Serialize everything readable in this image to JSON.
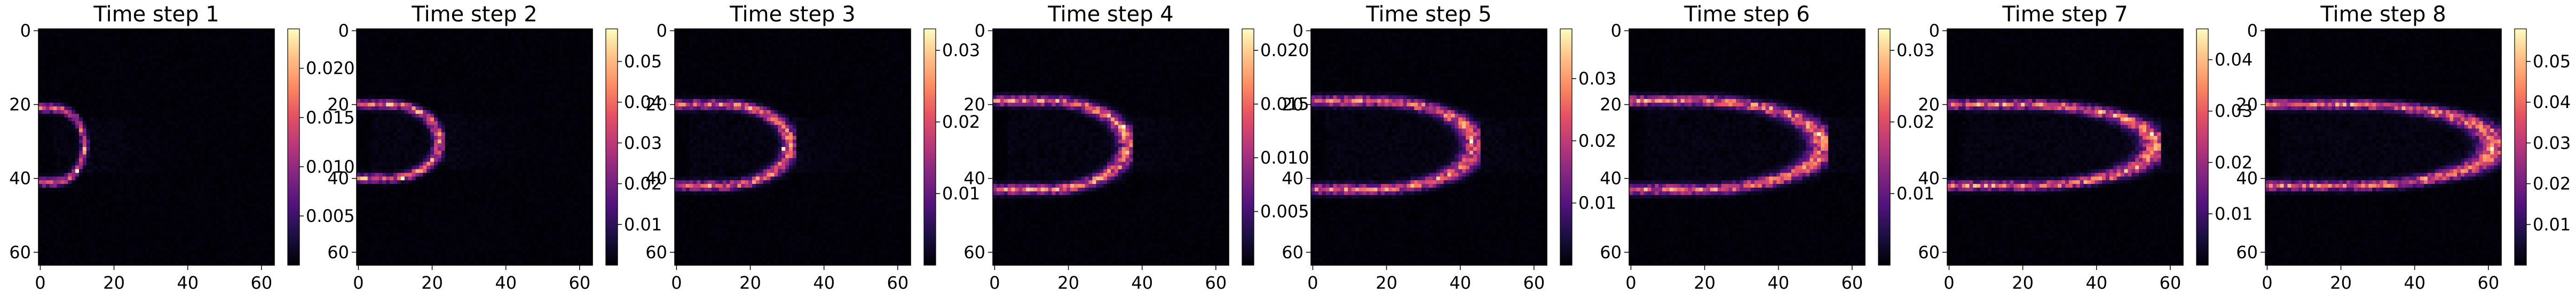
{
  "figure": {
    "panel_count": 8,
    "colormap": "magma"
  },
  "chart_data": [
    {
      "type": "heatmap",
      "title": "Time step 1",
      "grid_size": 64,
      "xticks": [
        0,
        20,
        40,
        60
      ],
      "yticks": [
        0,
        20,
        40,
        60
      ],
      "xlim": [
        0,
        63
      ],
      "ylim": [
        63,
        0
      ],
      "grid": false,
      "colorbar": {
        "ticks": [
          0.005,
          0.01,
          0.015,
          0.02
        ],
        "tick_labels": [
          "0.005",
          "0.010",
          "0.015",
          "0.020"
        ],
        "min": 0.0,
        "max": 0.024
      },
      "front": {
        "x_extent": 12,
        "inner_x": 4,
        "center_row": 31,
        "half_height": 10,
        "peak": 0.024,
        "bright_spot": [
          10,
          38
        ]
      }
    },
    {
      "type": "heatmap",
      "title": "Time step 2",
      "grid_size": 64,
      "xticks": [
        0,
        20,
        40,
        60
      ],
      "yticks": [
        0,
        20,
        40,
        60
      ],
      "xlim": [
        0,
        63
      ],
      "ylim": [
        63,
        0
      ],
      "grid": false,
      "colorbar": {
        "ticks": [
          0.01,
          0.02,
          0.03,
          0.04,
          0.05
        ],
        "tick_labels": [
          "0.01",
          "0.02",
          "0.03",
          "0.04",
          "0.05"
        ],
        "min": 0.0,
        "max": 0.058
      },
      "front": {
        "x_extent": 22,
        "inner_x": 8,
        "center_row": 30,
        "half_height": 10,
        "peak": 0.058,
        "bright_spot": [
          12,
          40
        ]
      }
    },
    {
      "type": "heatmap",
      "title": "Time step 3",
      "grid_size": 64,
      "xticks": [
        0,
        20,
        40,
        60
      ],
      "yticks": [
        0,
        20,
        40,
        60
      ],
      "xlim": [
        0,
        63
      ],
      "ylim": [
        63,
        0
      ],
      "grid": false,
      "colorbar": {
        "ticks": [
          0.01,
          0.02,
          0.03
        ],
        "tick_labels": [
          "0.01",
          "0.02",
          "0.03"
        ],
        "min": 0.0,
        "max": 0.033
      },
      "front": {
        "x_extent": 31,
        "inner_x": 12,
        "center_row": 31,
        "half_height": 11,
        "peak": 0.033,
        "bright_spot": [
          29,
          32
        ]
      }
    },
    {
      "type": "heatmap",
      "title": "Time step 4",
      "grid_size": 64,
      "xticks": [
        0,
        20,
        40,
        60
      ],
      "yticks": [
        0,
        20,
        40,
        60
      ],
      "xlim": [
        0,
        63
      ],
      "ylim": [
        63,
        0
      ],
      "grid": false,
      "colorbar": {
        "ticks": [
          0.005,
          0.01,
          0.015,
          0.02
        ],
        "tick_labels": [
          "0.005",
          "0.010",
          "0.015",
          "0.020"
        ],
        "min": 0.0,
        "max": 0.022
      },
      "front": {
        "x_extent": 36,
        "inner_x": 14,
        "center_row": 31,
        "half_height": 12,
        "peak": 0.022,
        "bright_spot": [
          35,
          26
        ]
      }
    },
    {
      "type": "heatmap",
      "title": "Time step 5",
      "grid_size": 64,
      "xticks": [
        0,
        20,
        40,
        60
      ],
      "yticks": [
        0,
        20,
        40,
        60
      ],
      "xlim": [
        0,
        63
      ],
      "ylim": [
        63,
        0
      ],
      "grid": false,
      "colorbar": {
        "ticks": [
          0.01,
          0.02,
          0.03
        ],
        "tick_labels": [
          "0.01",
          "0.02",
          "0.03"
        ],
        "min": 0.0,
        "max": 0.038
      },
      "front": {
        "x_extent": 44,
        "inner_x": 16,
        "center_row": 31,
        "half_height": 12,
        "peak": 0.038,
        "bright_spot": [
          43,
          30
        ]
      }
    },
    {
      "type": "heatmap",
      "title": "Time step 6",
      "grid_size": 64,
      "xticks": [
        0,
        20,
        40,
        60
      ],
      "yticks": [
        0,
        20,
        40,
        60
      ],
      "xlim": [
        0,
        63
      ],
      "ylim": [
        63,
        0
      ],
      "grid": false,
      "colorbar": {
        "ticks": [
          0.01,
          0.02,
          0.03
        ],
        "tick_labels": [
          "0.01",
          "0.02",
          "0.03"
        ],
        "min": 0.0,
        "max": 0.033
      },
      "front": {
        "x_extent": 52,
        "inner_x": 18,
        "center_row": 31,
        "half_height": 12,
        "peak": 0.033,
        "bright_spot": [
          51,
          28
        ]
      }
    },
    {
      "type": "heatmap",
      "title": "Time step 7",
      "grid_size": 64,
      "xticks": [
        0,
        20,
        40,
        60
      ],
      "yticks": [
        0,
        20,
        40,
        60
      ],
      "xlim": [
        0,
        63
      ],
      "ylim": [
        63,
        0
      ],
      "grid": false,
      "colorbar": {
        "ticks": [
          0.01,
          0.02,
          0.03,
          0.04
        ],
        "tick_labels": [
          "0.01",
          "0.02",
          "0.03",
          "0.04"
        ],
        "min": 0.0,
        "max": 0.046
      },
      "front": {
        "x_extent": 56,
        "inner_x": 20,
        "center_row": 31,
        "half_height": 11,
        "peak": 0.046,
        "bright_spot": [
          55,
          28
        ]
      }
    },
    {
      "type": "heatmap",
      "title": "Time step 8",
      "grid_size": 64,
      "xticks": [
        0,
        20,
        40,
        60
      ],
      "yticks": [
        0,
        20,
        40,
        60
      ],
      "xlim": [
        0,
        63
      ],
      "ylim": [
        63,
        0
      ],
      "grid": false,
      "colorbar": {
        "ticks": [
          0.01,
          0.02,
          0.03,
          0.04,
          0.05
        ],
        "tick_labels": [
          "0.01",
          "0.02",
          "0.03",
          "0.04",
          "0.05"
        ],
        "min": 0.0,
        "max": 0.058
      },
      "front": {
        "x_extent": 62,
        "inner_x": 22,
        "center_row": 31,
        "half_height": 11,
        "peak": 0.058,
        "bright_spot": [
          61,
          32
        ]
      }
    }
  ]
}
